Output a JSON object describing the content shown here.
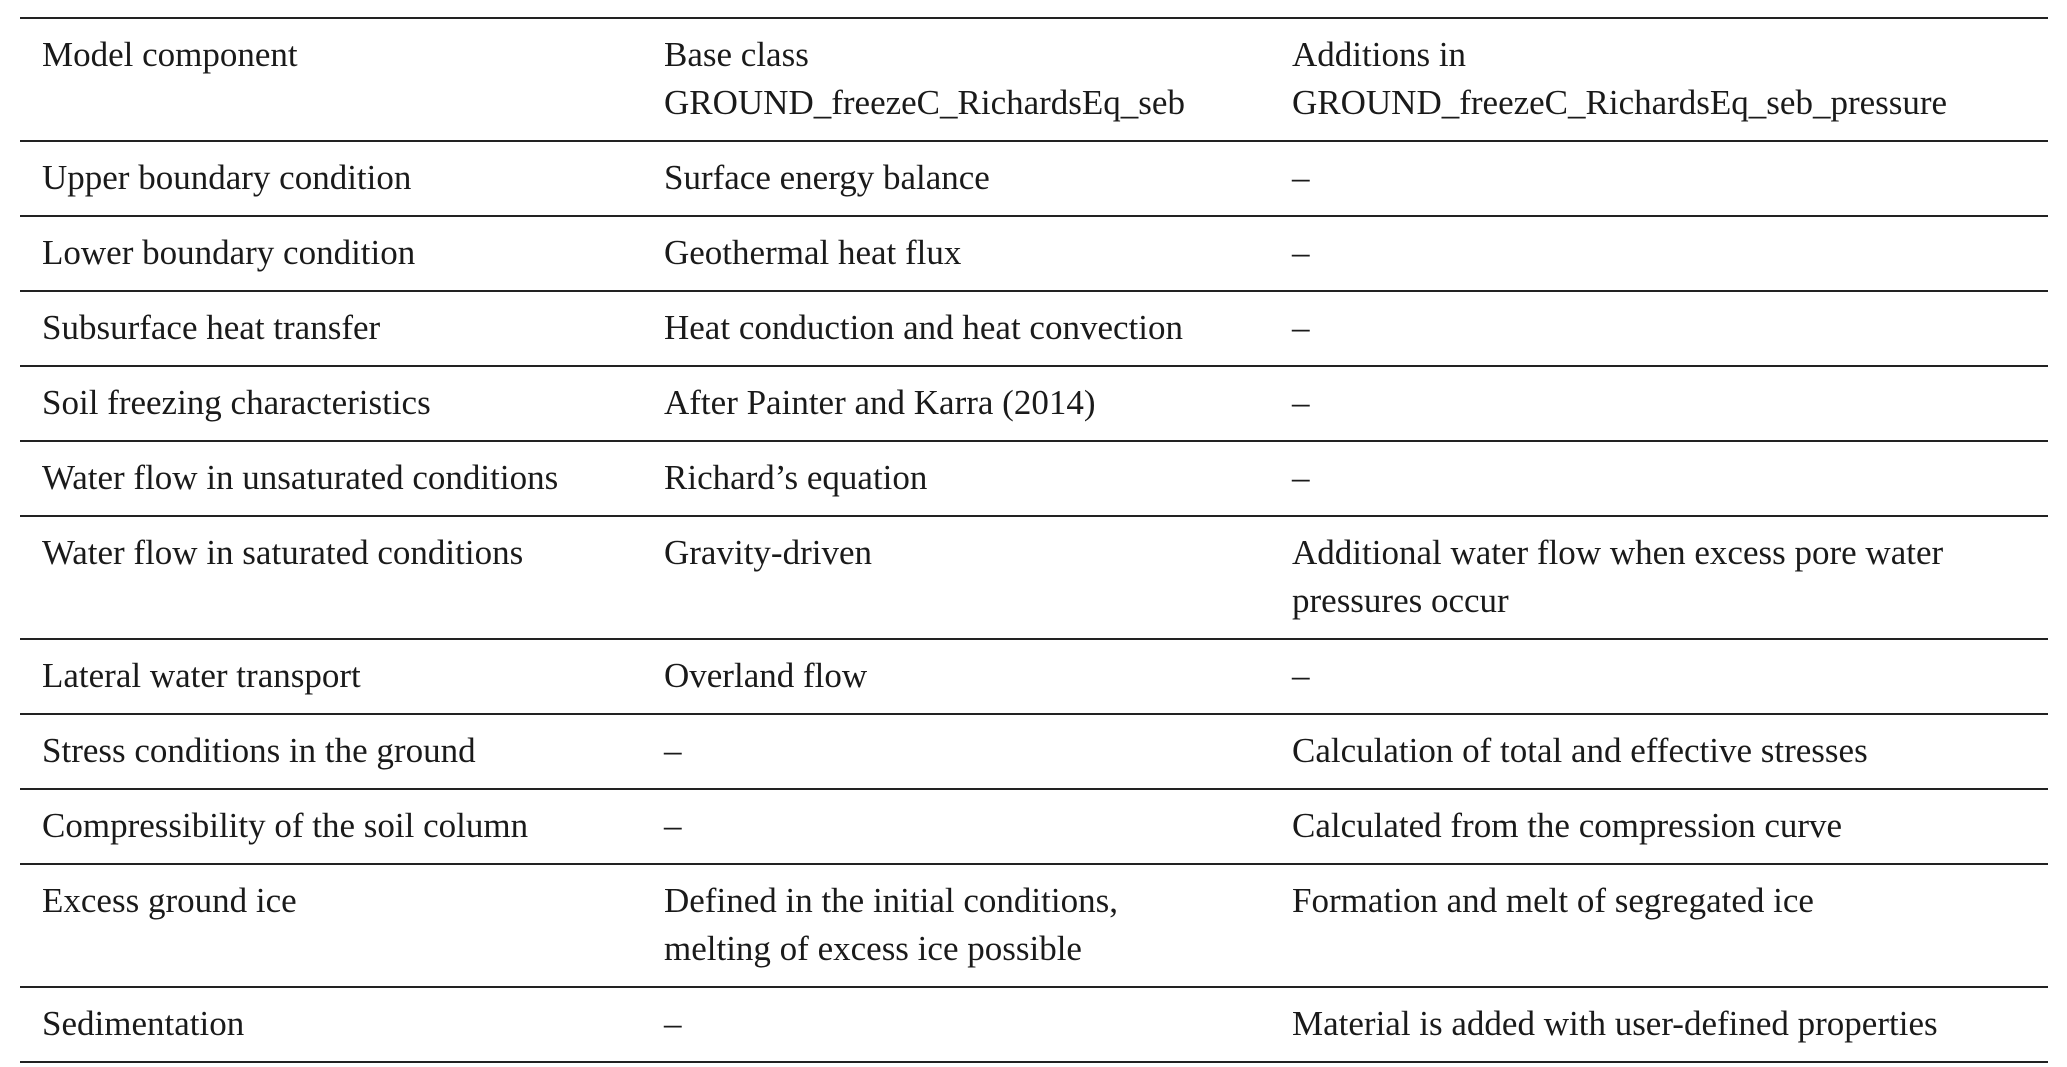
{
  "table": {
    "headers": {
      "col1": "Model component",
      "col2_line1": "Base class",
      "col2_line2": "GROUND_freezeC_RichardsEq_seb",
      "col3_line1": "Additions in",
      "col3_line2": "GROUND_freezeC_RichardsEq_seb_pressure"
    },
    "rows": [
      {
        "component": "Upper boundary condition",
        "base": [
          "Surface energy balance"
        ],
        "additions": [
          "–"
        ]
      },
      {
        "component": "Lower boundary condition",
        "base": [
          "Geothermal heat flux"
        ],
        "additions": [
          "–"
        ]
      },
      {
        "component": "Subsurface heat transfer",
        "base": [
          "Heat conduction and heat convection"
        ],
        "additions": [
          "–"
        ]
      },
      {
        "component": "Soil freezing characteristics",
        "base": [
          "After Painter and Karra (2014)"
        ],
        "additions": [
          "–"
        ]
      },
      {
        "component": "Water flow in unsaturated conditions",
        "base": [
          "Richard’s equation"
        ],
        "additions": [
          "–"
        ]
      },
      {
        "component": "Water flow in saturated conditions",
        "base": [
          "Gravity-driven"
        ],
        "additions": [
          "Additional water flow when excess pore water",
          "pressures occur"
        ]
      },
      {
        "component": "Lateral water transport",
        "base": [
          "Overland flow"
        ],
        "additions": [
          "–"
        ]
      },
      {
        "component": "Stress conditions in the ground",
        "base": [
          "–"
        ],
        "additions": [
          "Calculation of total and effective stresses"
        ]
      },
      {
        "component": "Compressibility of the soil column",
        "base": [
          "–"
        ],
        "additions": [
          "Calculated from the compression curve"
        ]
      },
      {
        "component": "Excess ground ice",
        "base": [
          "Defined in the initial conditions,",
          "melting of excess ice possible"
        ],
        "additions": [
          "Formation and melt of segregated ice"
        ]
      },
      {
        "component": "Sedimentation",
        "base": [
          "–"
        ],
        "additions": [
          "Material is added with user-defined properties"
        ]
      }
    ]
  }
}
